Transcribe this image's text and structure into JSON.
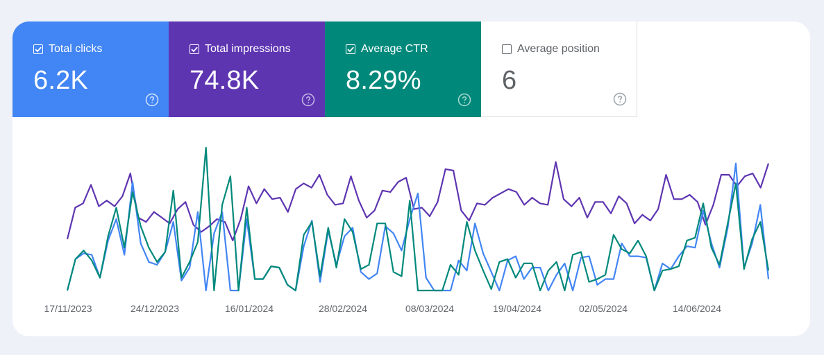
{
  "metrics": [
    {
      "id": "clicks",
      "label": "Total clicks",
      "value": "6.2K",
      "checked": true,
      "color": "#4285f4"
    },
    {
      "id": "impr",
      "label": "Total impressions",
      "value": "74.8K",
      "checked": true,
      "color": "#5e35b1"
    },
    {
      "id": "ctr",
      "label": "Average CTR",
      "value": "8.29%",
      "checked": true,
      "color": "#00897b"
    },
    {
      "id": "pos",
      "label": "Average position",
      "value": "6",
      "checked": false,
      "color": "#ffffff"
    }
  ],
  "icons": {
    "checkbox": "checkbox-icon",
    "help": "help-circle-icon"
  },
  "chart_data": {
    "type": "line",
    "x_tick_labels": [
      "17/11/2023",
      "24/12/2023",
      "16/01/2024",
      "28/02/2024",
      "08/03/2024",
      "19/04/2024",
      "02/05/2024",
      "14/06/2024"
    ],
    "series": [
      {
        "color": "#5e35b1",
        "values": [
          36,
          58,
          61,
          74,
          59,
          63,
          59,
          66,
          82,
          51,
          48,
          55,
          51,
          47,
          57,
          62,
          46,
          41,
          45,
          50,
          48,
          35,
          50,
          73,
          61,
          71,
          64,
          65,
          55,
          71,
          75,
          72,
          81,
          67,
          60,
          61,
          80,
          63,
          51,
          56,
          70,
          69,
          76,
          79,
          57,
          58,
          52,
          62,
          85,
          84,
          56,
          49,
          61,
          60,
          65,
          68,
          71,
          69,
          60,
          65,
          61,
          60,
          90,
          64,
          59,
          65,
          51,
          62,
          62,
          54,
          66,
          61,
          47,
          53,
          49,
          57,
          81,
          64,
          64,
          67,
          62,
          46,
          60,
          81,
          81,
          73,
          80,
          82,
          72,
          89
        ]
      },
      {
        "color": "#4285f4",
        "values": [
          0,
          22,
          26,
          25,
          9,
          35,
          50,
          25,
          76,
          33,
          20,
          18,
          27,
          48,
          7,
          16,
          55,
          0,
          40,
          55,
          0,
          0,
          50,
          8,
          8,
          17,
          16,
          4,
          0,
          31,
          49,
          6,
          42,
          18,
          38,
          44,
          13,
          8,
          12,
          45,
          40,
          28,
          50,
          68,
          9,
          0,
          0,
          0,
          21,
          14,
          47,
          26,
          13,
          0,
          21,
          24,
          8,
          16,
          16,
          0,
          11,
          19,
          0,
          23,
          24,
          4,
          8,
          8,
          33,
          24,
          24,
          23,
          0,
          19,
          15,
          24,
          31,
          30,
          56,
          33,
          16,
          44,
          89,
          16,
          33,
          60,
          8
        ]
      },
      {
        "color": "#00897b",
        "values": [
          0,
          22,
          28,
          21,
          9,
          38,
          58,
          30,
          69,
          45,
          30,
          20,
          27,
          70,
          9,
          20,
          34,
          100,
          0,
          60,
          80,
          0,
          58,
          8,
          8,
          17,
          16,
          4,
          0,
          39,
          48,
          10,
          44,
          16,
          50,
          41,
          15,
          18,
          47,
          47,
          13,
          10,
          63,
          0,
          0,
          0,
          0,
          18,
          11,
          48,
          28,
          14,
          1,
          20,
          22,
          9,
          19,
          19,
          0,
          14,
          20,
          0,
          25,
          27,
          6,
          8,
          11,
          39,
          29,
          26,
          35,
          24,
          0,
          14,
          15,
          17,
          35,
          37,
          61,
          30,
          18,
          47,
          75,
          15,
          36,
          48,
          14
        ]
      }
    ]
  }
}
